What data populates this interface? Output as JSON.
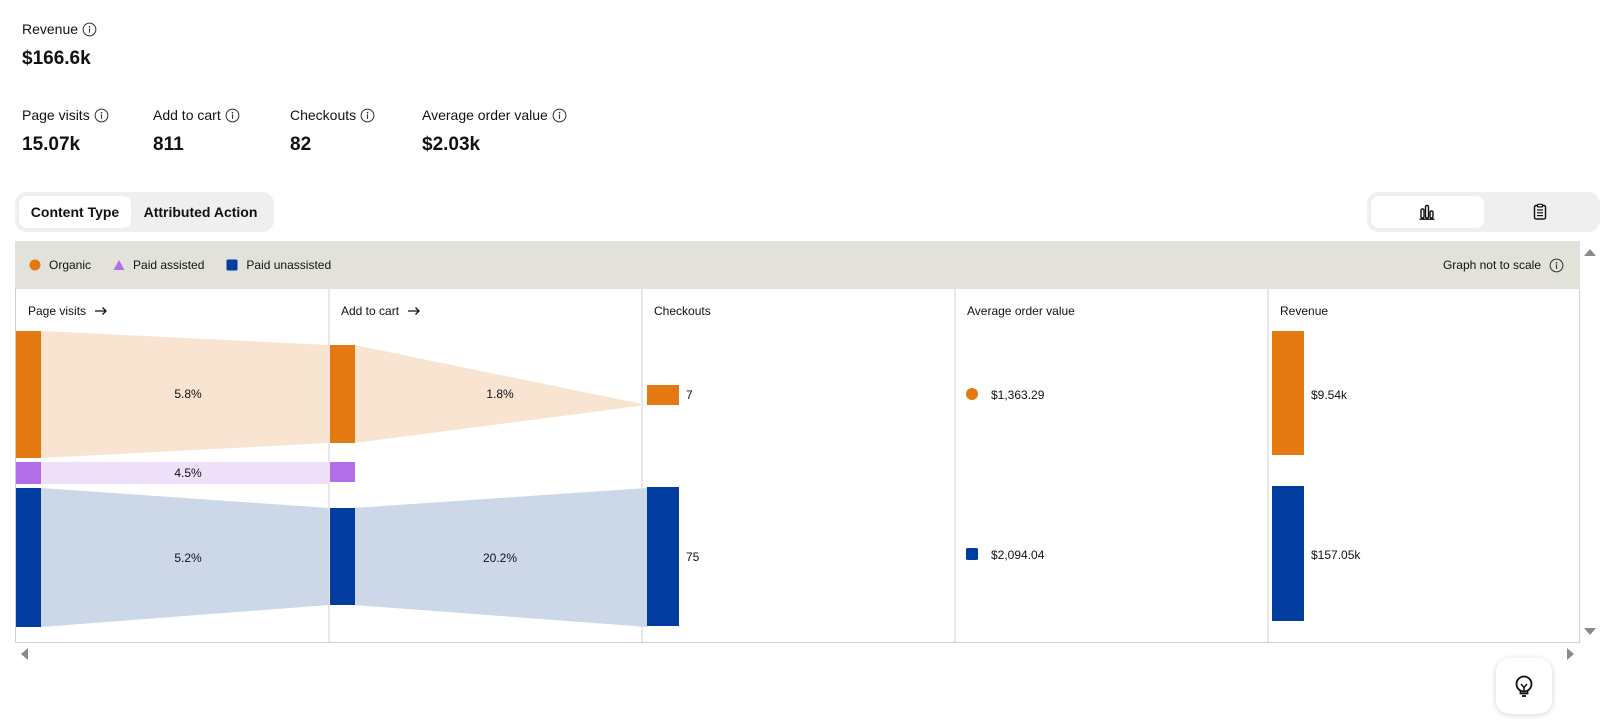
{
  "summary": {
    "revenue": {
      "label": "Revenue",
      "value": "$166.6k"
    },
    "metrics": [
      {
        "label": "Page visits",
        "value": "15.07k"
      },
      {
        "label": "Add to cart",
        "value": "811"
      },
      {
        "label": "Checkouts",
        "value": "82"
      },
      {
        "label": "Average order value",
        "value": "$2.03k"
      }
    ]
  },
  "tabs": [
    {
      "label": "Content Type",
      "active": true
    },
    {
      "label": "Attributed Action",
      "active": false
    }
  ],
  "view_toggle": [
    {
      "icon": "bar-chart-icon",
      "active": true
    },
    {
      "icon": "table-icon",
      "active": false
    }
  ],
  "legend": {
    "items": [
      {
        "label": "Organic",
        "shape": "circle",
        "color": "#e47911"
      },
      {
        "label": "Paid assisted",
        "shape": "triangle",
        "color": "#b26ee8"
      },
      {
        "label": "Paid unassisted",
        "shape": "square",
        "color": "#003d9e"
      }
    ],
    "note": "Graph not to scale"
  },
  "columns": {
    "page_visits": "Page visits",
    "add_to_cart": "Add to cart",
    "checkouts": "Checkouts",
    "aov": "Average order value",
    "revenue": "Revenue"
  },
  "funnel": {
    "organic": {
      "color": "#e47911",
      "flow_color": "#f8e4d0",
      "visits_to_cart_rate": "5.8%",
      "cart_to_checkout_rate": "1.8%",
      "checkouts": "7",
      "aov": "$1,363.29",
      "revenue": "$9.54k"
    },
    "paid_assisted": {
      "color": "#b26ee8",
      "flow_color": "#eee0f8",
      "visits_to_cart_rate": "4.5%"
    },
    "paid_unassisted": {
      "color": "#003d9e",
      "flow_color": "#ccd8e8",
      "visits_to_cart_rate": "5.2%",
      "cart_to_checkout_rate": "20.2%",
      "checkouts": "75",
      "aov": "$2,094.04",
      "revenue": "$157.05k"
    }
  }
}
